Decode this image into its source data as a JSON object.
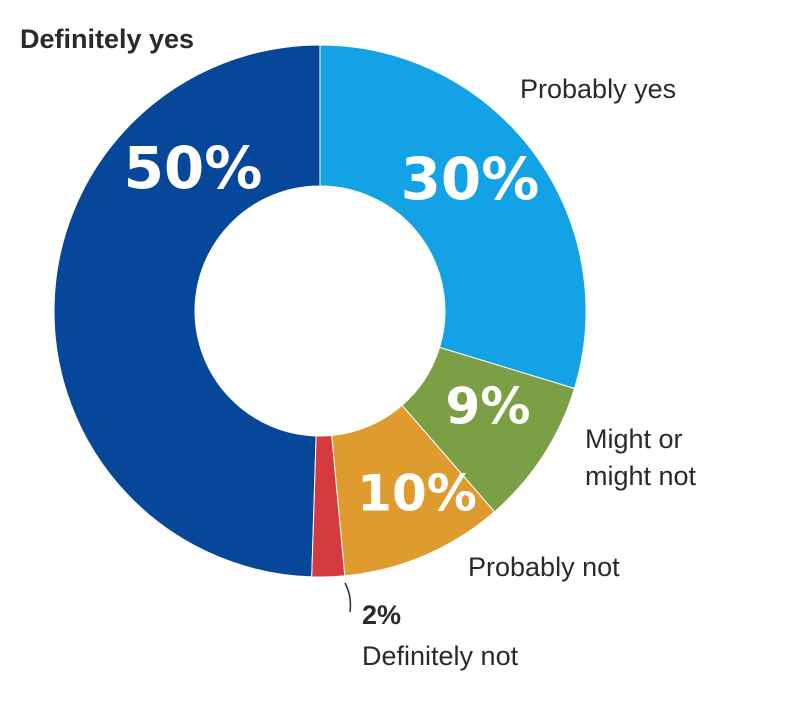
{
  "chart_data": {
    "type": "pie",
    "donut": true,
    "categories": [
      "Definitely yes",
      "Probably yes",
      "Might or might not",
      "Probably not",
      "Definitely not"
    ],
    "values": [
      50,
      30,
      9,
      10,
      2
    ],
    "value_labels": [
      "50%",
      "30%",
      "9%",
      "10%",
      "2%"
    ],
    "category_lines": [
      [
        "Definitely yes"
      ],
      [
        "Probably yes"
      ],
      [
        "Might or",
        "might not"
      ],
      [
        "Probably not"
      ],
      [
        "Definitely not"
      ]
    ],
    "colors": [
      "#07479a",
      "#12a2e5",
      "#7a9f45",
      "#df9b2d",
      "#d53a3f"
    ],
    "legend": "none"
  }
}
